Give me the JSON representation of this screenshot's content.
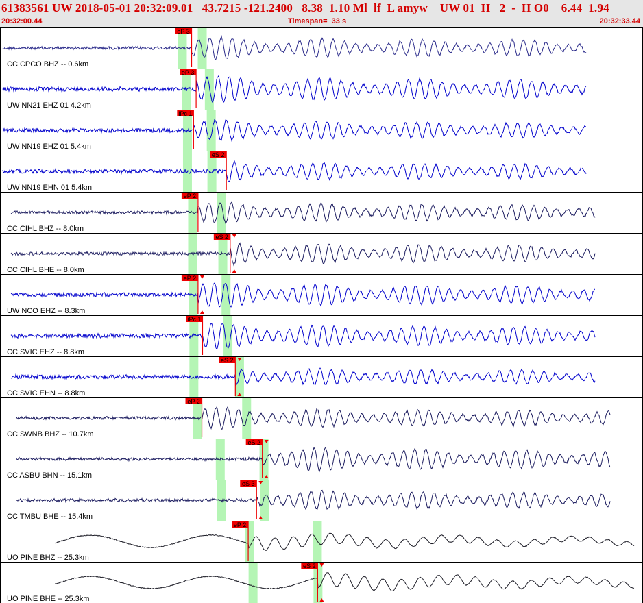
{
  "header": {
    "title": "61383561 UW 2018-05-01 20:32:09.01   43.7215 -121.2400   8.38  1.10 Ml  lf  L amyw    UW 01  H   2  -  H O0    6.44  1.94",
    "start_time": "20:32:00.44",
    "timespan": "Timespan=  33 s",
    "end_time": "20:32:33.44"
  },
  "colors": {
    "header_bg": "#e6e6e6",
    "header_text": "#d40000",
    "wave_blue": "#0000cc",
    "wave_navy": "#1a1a5e",
    "wave_black": "#1e1e28",
    "green_band": "#b5f5b5",
    "pick_red": "#ee0000",
    "grid": "#000000"
  },
  "traces": [
    {
      "label": "CC CPCO BHZ -- 0.6km",
      "color": "blue_navy",
      "pick": "eP 3",
      "pick_t": 0.298,
      "bands": [
        0.283,
        0.314
      ],
      "amp": 0.6,
      "arrow": false
    },
    {
      "label": "UW NN21 EHZ 01 4.2km",
      "color": "blue",
      "pick": "eP 3",
      "pick_t": 0.305,
      "bands": [
        0.289,
        0.325
      ],
      "amp": 0.75,
      "arrow": false
    },
    {
      "label": "UW NN19 EHZ 01 5.4km",
      "color": "blue",
      "pick": "iPc 1",
      "pick_t": 0.301,
      "bands": [
        0.291,
        0.328
      ],
      "amp": 0.55,
      "arrow": false
    },
    {
      "label": "UW NN19 EHN 01 5.4km",
      "color": "blue",
      "pick": "eS 2",
      "pick_t": 0.352,
      "bands": [
        0.291,
        0.329
      ],
      "amp": 0.5,
      "arrow": false
    },
    {
      "label": "CC CIHL BHZ -- 8.0km",
      "color": "navy",
      "pick": "eP 2",
      "pick_t": 0.308,
      "bands": [
        0.299,
        0.344
      ],
      "amp": 0.55,
      "arrow": false
    },
    {
      "label": "CC CIHL BHE -- 8.0km",
      "color": "navy",
      "pick": "eS 2",
      "pick_t": 0.358,
      "bands": [
        0.299,
        0.346
      ],
      "amp": 0.6,
      "arrow": true
    },
    {
      "label": "UW NCO EHZ -- 8.3km",
      "color": "blue",
      "pick": "eP 2",
      "pick_t": 0.308,
      "bands": [
        0.3,
        0.351
      ],
      "amp": 0.7,
      "arrow": true
    },
    {
      "label": "CC SVIC EHZ -- 8.8km",
      "color": "blue",
      "pick": "iPc 1",
      "pick_t": 0.315,
      "bands": [
        0.301,
        0.354
      ],
      "amp": 0.7,
      "arrow": false
    },
    {
      "label": "CC SVIC EHN -- 8.8km",
      "color": "blue",
      "pick": "eS 2",
      "pick_t": 0.366,
      "bands": [
        0.301,
        0.372
      ],
      "amp": 0.45,
      "arrow": true
    },
    {
      "label": "CC SWNB BHZ -- 10.7km",
      "color": "navy",
      "pick": "eP 2",
      "pick_t": 0.314,
      "bands": [
        0.307,
        0.383
      ],
      "amp": 0.55,
      "arrow": false
    },
    {
      "label": "CC ASBU BHN -- 15.1km",
      "color": "navy",
      "pick": "eS 2",
      "pick_t": 0.408,
      "bands": [
        0.342,
        0.41
      ],
      "amp": 0.7,
      "arrow": true
    },
    {
      "label": "CC TMBU BHE -- 15.4km",
      "color": "navy",
      "pick": "eS 3",
      "pick_t": 0.399,
      "bands": [
        0.344,
        0.411
      ],
      "amp": 0.55,
      "arrow": true
    },
    {
      "label": "UO PINE BHZ -- 25.3km",
      "color": "black",
      "pick": "eP 2",
      "pick_t": 0.386,
      "bands": [
        0.388,
        0.493
      ],
      "amp": 0.7,
      "arrow": false
    },
    {
      "label": "UO PINE BHE -- 25.3km",
      "color": "black",
      "pick": "eS 2",
      "pick_t": 0.494,
      "bands": [
        0.393,
        0.494
      ],
      "amp": 0.75,
      "arrow": true
    }
  ]
}
